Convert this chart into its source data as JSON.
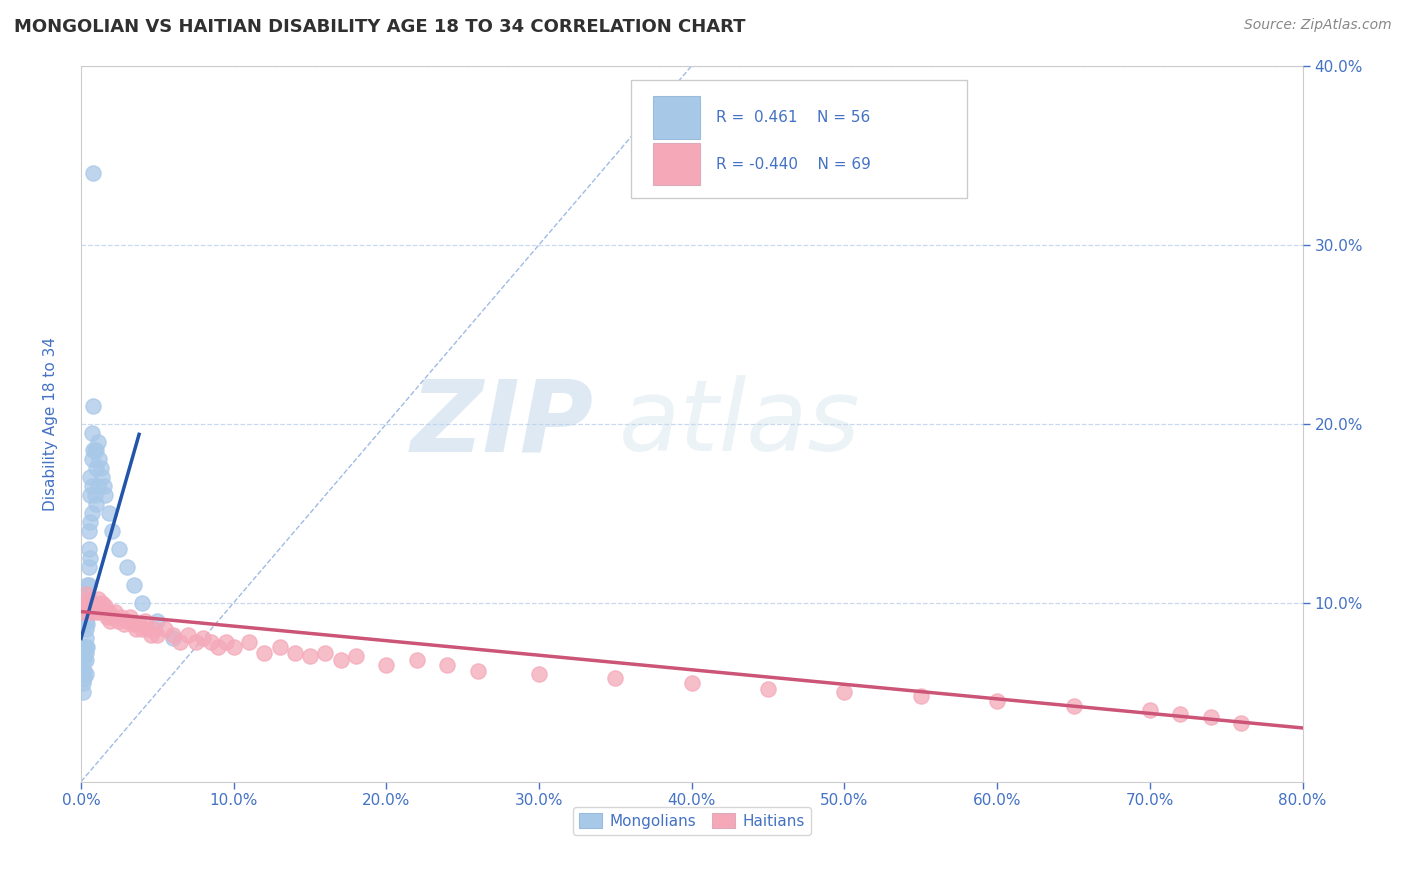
{
  "title": "MONGOLIAN VS HAITIAN DISABILITY AGE 18 TO 34 CORRELATION CHART",
  "source": "Source: ZipAtlas.com",
  "ylabel": "Disability Age 18 to 34",
  "xlim": [
    0.0,
    0.8
  ],
  "ylim": [
    0.0,
    0.4
  ],
  "mongolian_color": "#a8c8e8",
  "haitian_color": "#f4a8b8",
  "mongolian_line_color": "#2255aa",
  "haitian_line_color": "#cc5577",
  "ref_line_color": "#88aadd",
  "watermark_zip": "ZIP",
  "watermark_atlas": "atlas",
  "background_color": "#ffffff",
  "grid_color": "#c8d8ee",
  "axis_color": "#4472c4",
  "title_color": "#303030",
  "source_color": "#888888",
  "legend_text_color": "#4472c4",
  "mongolian_x": [
    0.001,
    0.001,
    0.001,
    0.002,
    0.002,
    0.002,
    0.002,
    0.002,
    0.003,
    0.003,
    0.003,
    0.003,
    0.003,
    0.003,
    0.003,
    0.004,
    0.004,
    0.004,
    0.004,
    0.004,
    0.005,
    0.005,
    0.005,
    0.005,
    0.005,
    0.006,
    0.006,
    0.006,
    0.006,
    0.007,
    0.007,
    0.007,
    0.007,
    0.008,
    0.008,
    0.008,
    0.009,
    0.009,
    0.01,
    0.01,
    0.01,
    0.011,
    0.011,
    0.012,
    0.013,
    0.014,
    0.015,
    0.016,
    0.018,
    0.02,
    0.025,
    0.03,
    0.035,
    0.04,
    0.05,
    0.06
  ],
  "mongolian_y": [
    0.06,
    0.055,
    0.05,
    0.075,
    0.07,
    0.068,
    0.062,
    0.058,
    0.09,
    0.085,
    0.08,
    0.075,
    0.072,
    0.068,
    0.06,
    0.11,
    0.105,
    0.095,
    0.088,
    0.075,
    0.14,
    0.13,
    0.12,
    0.11,
    0.095,
    0.17,
    0.16,
    0.145,
    0.125,
    0.195,
    0.18,
    0.165,
    0.15,
    0.34,
    0.21,
    0.185,
    0.185,
    0.16,
    0.185,
    0.175,
    0.155,
    0.19,
    0.165,
    0.18,
    0.175,
    0.17,
    0.165,
    0.16,
    0.15,
    0.14,
    0.13,
    0.12,
    0.11,
    0.1,
    0.09,
    0.08
  ],
  "haitian_x": [
    0.001,
    0.002,
    0.003,
    0.004,
    0.005,
    0.006,
    0.007,
    0.008,
    0.009,
    0.01,
    0.011,
    0.012,
    0.013,
    0.014,
    0.015,
    0.016,
    0.017,
    0.018,
    0.019,
    0.02,
    0.022,
    0.024,
    0.026,
    0.028,
    0.03,
    0.032,
    0.034,
    0.036,
    0.038,
    0.04,
    0.042,
    0.044,
    0.046,
    0.048,
    0.05,
    0.055,
    0.06,
    0.065,
    0.07,
    0.075,
    0.08,
    0.085,
    0.09,
    0.095,
    0.1,
    0.11,
    0.12,
    0.13,
    0.14,
    0.15,
    0.16,
    0.17,
    0.18,
    0.2,
    0.22,
    0.24,
    0.26,
    0.3,
    0.35,
    0.4,
    0.45,
    0.5,
    0.55,
    0.6,
    0.65,
    0.7,
    0.72,
    0.74,
    0.76
  ],
  "haitian_y": [
    0.095,
    0.1,
    0.105,
    0.098,
    0.102,
    0.095,
    0.098,
    0.1,
    0.095,
    0.098,
    0.102,
    0.095,
    0.098,
    0.1,
    0.095,
    0.098,
    0.092,
    0.095,
    0.09,
    0.092,
    0.095,
    0.09,
    0.092,
    0.088,
    0.09,
    0.092,
    0.088,
    0.085,
    0.088,
    0.085,
    0.09,
    0.085,
    0.082,
    0.085,
    0.082,
    0.085,
    0.082,
    0.078,
    0.082,
    0.078,
    0.08,
    0.078,
    0.075,
    0.078,
    0.075,
    0.078,
    0.072,
    0.075,
    0.072,
    0.07,
    0.072,
    0.068,
    0.07,
    0.065,
    0.068,
    0.065,
    0.062,
    0.06,
    0.058,
    0.055,
    0.052,
    0.05,
    0.048,
    0.045,
    0.042,
    0.04,
    0.038,
    0.036,
    0.033
  ],
  "figsize": [
    14.06,
    8.92
  ],
  "dpi": 100
}
